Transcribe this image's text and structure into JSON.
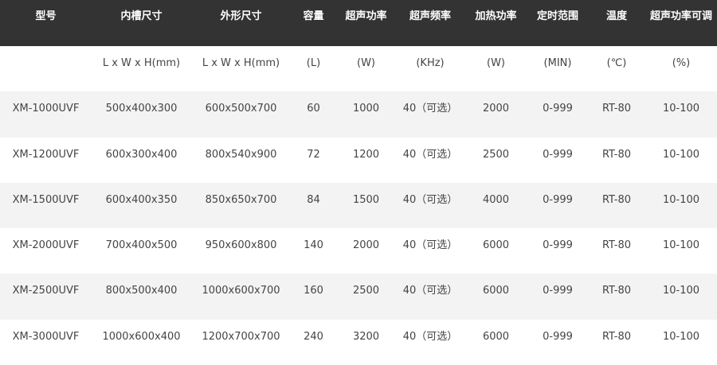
{
  "table": {
    "header": [
      "型号",
      "内槽尺寸",
      "外形尺寸",
      "容量",
      "超声功率",
      "超声频率",
      "加热功率",
      "定时范围",
      "温度",
      "超声功率可调"
    ],
    "units": [
      "",
      "L x W x H(mm)",
      "L x W x H(mm)",
      "(L)",
      "(W)",
      "(KHz)",
      "(W)",
      "(MIN)",
      "(℃)",
      "(%)"
    ],
    "rows": [
      [
        "XM-1000UVF",
        "500x400x300",
        "600x500x700",
        "60",
        "1000",
        "40（可选）",
        "2000",
        "0-999",
        "RT-80",
        "10-100"
      ],
      [
        "XM-1200UVF",
        "600x300x400",
        "800x540x900",
        "72",
        "1200",
        "40（可选）",
        "2500",
        "0-999",
        "RT-80",
        "10-100"
      ],
      [
        "XM-1500UVF",
        "600x400x350",
        "850x650x700",
        "84",
        "1500",
        "40（可选）",
        "4000",
        "0-999",
        "RT-80",
        "10-100"
      ],
      [
        "XM-2000UVF",
        "700x400x500",
        "950x600x800",
        "140",
        "2000",
        "40（可选）",
        "6000",
        "0-999",
        "RT-80",
        "10-100"
      ],
      [
        "XM-2500UVF",
        "800x500x400",
        "1000x600x700",
        "160",
        "2500",
        "40（可选）",
        "6000",
        "0-999",
        "RT-80",
        "10-100"
      ],
      [
        "XM-3000UVF",
        "1000x600x400",
        "1200x700x700",
        "240",
        "3200",
        "40（可选）",
        "6000",
        "0-999",
        "RT-80",
        "10-100"
      ]
    ]
  }
}
